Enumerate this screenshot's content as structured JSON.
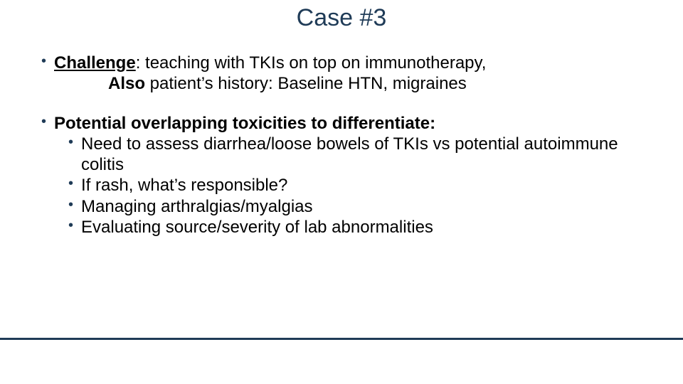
{
  "title_color": "#1f3b57",
  "bullet_color": "#1f3b57",
  "line_color": "#1f3b57",
  "slide": {
    "title": "Case #3",
    "b1": {
      "label": "Challenge",
      "text_line1": ": teaching with TKIs on top on immunotherapy,",
      "text_line2_bold": "Also",
      "text_line2_rest": " patient’s history: Baseline HTN, migraines"
    },
    "b2": {
      "label_bold": "Potential overlapping toxicities to differentiate:",
      "sub": [
        "Need to assess diarrhea/loose bowels of TKIs vs potential autoimmune colitis",
        "If rash, what’s responsible?",
        "Managing arthralgias/myalgias",
        "Evaluating source/severity of lab abnormalities"
      ]
    }
  }
}
